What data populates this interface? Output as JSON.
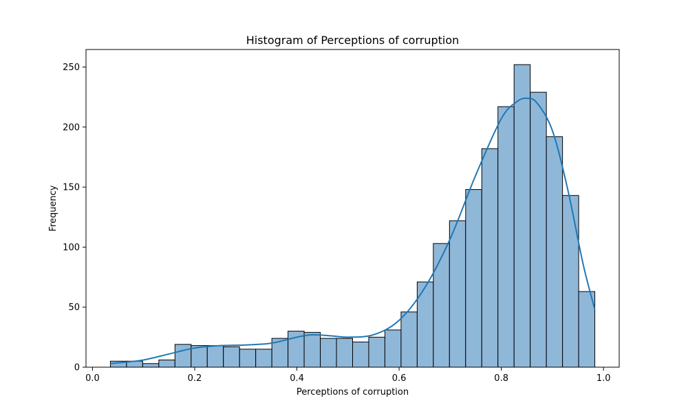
{
  "chart_data": {
    "type": "bar",
    "title": "Histogram of Perceptions of corruption",
    "xlabel": "Perceptions of corruption",
    "ylabel": "Frequency",
    "xlim": [
      -0.0127,
      1.0307
    ],
    "ylim": [
      0,
      264.6
    ],
    "xticks": [
      0.0,
      0.2,
      0.4,
      0.6,
      0.8,
      1.0
    ],
    "xtick_labels": [
      "0.0",
      "0.2",
      "0.4",
      "0.6",
      "0.8",
      "1.0"
    ],
    "yticks": [
      0,
      50,
      100,
      150,
      200,
      250
    ],
    "ytick_labels": [
      "0",
      "50",
      "100",
      "150",
      "200",
      "250"
    ],
    "bin_edges": [
      0.035,
      0.0666,
      0.0982,
      0.1298,
      0.1614,
      0.193,
      0.2246,
      0.2562,
      0.2878,
      0.3194,
      0.351,
      0.3826,
      0.4142,
      0.4458,
      0.4774,
      0.509,
      0.5406,
      0.5722,
      0.6038,
      0.6354,
      0.667,
      0.6986,
      0.7302,
      0.7618,
      0.7934,
      0.825,
      0.8566,
      0.8882,
      0.9198,
      0.9514,
      0.983
    ],
    "values": [
      5,
      5,
      3,
      6,
      19,
      18,
      18,
      17,
      15,
      15,
      24,
      30,
      29,
      24,
      24,
      21,
      25,
      31,
      46,
      71,
      103,
      122,
      148,
      182,
      217,
      252,
      229,
      192,
      143,
      63
    ],
    "kde": {
      "x": [
        0.035,
        0.06,
        0.1,
        0.15,
        0.2,
        0.25,
        0.3,
        0.35,
        0.4,
        0.43,
        0.47,
        0.5,
        0.55,
        0.6,
        0.65,
        0.7,
        0.75,
        0.8,
        0.83,
        0.85,
        0.87,
        0.9,
        0.93,
        0.96,
        0.983
      ],
      "y": [
        3,
        4,
        6,
        11,
        16,
        18,
        18.5,
        20,
        25,
        27,
        26,
        25,
        27,
        39,
        66,
        107,
        160,
        207,
        221,
        224,
        220,
        197,
        148,
        86,
        48
      ]
    },
    "colors": {
      "bar_fill": "#8fb7d8",
      "bar_edge": "#000000",
      "kde_line": "#1f77b4"
    },
    "grid": false,
    "legend": "none"
  }
}
